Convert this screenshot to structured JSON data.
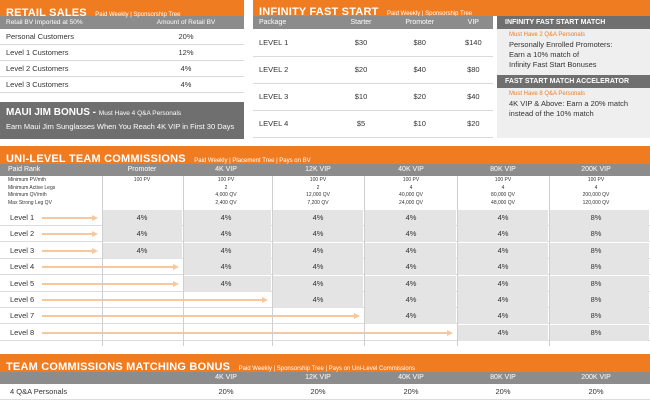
{
  "retail": {
    "title": "RETAIL SALES",
    "subtitle": "Paid Weekly | Sponsorship Tree",
    "col_left": "Retail BV Imported at 50%",
    "col_right": "Amount of Retail BV",
    "rows": [
      {
        "label": "Personal Customers",
        "value": "20%"
      },
      {
        "label": "Level 1 Customers",
        "value": "12%"
      },
      {
        "label": "Level 2 Customers",
        "value": "4%"
      },
      {
        "label": "Level 3 Customers",
        "value": "4%"
      }
    ]
  },
  "maui": {
    "title": "MAUI JIM BONUS -",
    "requirement": "Must Have 4 Q&A Personals",
    "text": "Earn Maui Jim Sunglasses When You Reach 4K VIP in First 30 Days"
  },
  "infinity": {
    "title": "INFINITY FAST START",
    "subtitle": "Paid Weekly | Sponsorship Tree",
    "headers": [
      "Package",
      "Starter",
      "Promoter",
      "VIP"
    ],
    "rows": [
      [
        "LEVEL 1",
        "$30",
        "$80",
        "$140"
      ],
      [
        "LEVEL 2",
        "$20",
        "$40",
        "$80"
      ],
      [
        "LEVEL 3",
        "$10",
        "$20",
        "$40"
      ],
      [
        "LEVEL 4",
        "$5",
        "$10",
        "$20"
      ]
    ],
    "match": {
      "title": "INFINITY FAST START MATCH",
      "requirement": "Must Have 2 Q&A Personals",
      "line1": "Personally Enrolled Promoters:",
      "line2": "Earn a 10% match of",
      "line3": "Infinity Fast Start Bonuses"
    },
    "accel": {
      "title": "FAST START MATCH ACCELERATOR",
      "requirement": "Must Have 8 Q&A Personals",
      "line1": "4K VIP & Above: Earn a 20% match",
      "line2": "instead of the 10% match"
    }
  },
  "unilevel": {
    "title": "UNI-LEVEL TEAM COMMISSIONS",
    "subtitle": "Paid Weekly | Placement Tree | Pays on BV",
    "paid_rank": "Paid Rank",
    "ranks": [
      "Promoter",
      "4K VIP",
      "12K VIP",
      "40K VIP",
      "80K VIP",
      "200K VIP"
    ],
    "req_labels": [
      "Minimum PV/mth",
      "Minimum Active Legs",
      "Minimum QV/mth",
      "Max Strong Leg QV"
    ],
    "requirements": [
      [
        "100 PV",
        "",
        "",
        ""
      ],
      [
        "100 PV",
        "2",
        "4,000 QV",
        "2,400 QV"
      ],
      [
        "100 PV",
        "2",
        "12,000 QV",
        "7,200 QV"
      ],
      [
        "100 PV",
        "4",
        "40,000 QV",
        "24,000 QV"
      ],
      [
        "100 PV",
        "4",
        "80,000 QV",
        "48,000 QV"
      ],
      [
        "100 PV",
        "4",
        "200,000 QV",
        "120,000 QV"
      ]
    ],
    "levels": [
      {
        "label": "Level 1",
        "values": [
          "4%",
          "4%",
          "4%",
          "4%",
          "4%",
          "8%"
        ]
      },
      {
        "label": "Level 2",
        "values": [
          "4%",
          "4%",
          "4%",
          "4%",
          "4%",
          "8%"
        ]
      },
      {
        "label": "Level 3",
        "values": [
          "4%",
          "4%",
          "4%",
          "4%",
          "4%",
          "8%"
        ]
      },
      {
        "label": "Level 4",
        "values": [
          "",
          "4%",
          "4%",
          "4%",
          "4%",
          "8%"
        ]
      },
      {
        "label": "Level 5",
        "values": [
          "",
          "4%",
          "4%",
          "4%",
          "4%",
          "8%"
        ]
      },
      {
        "label": "Level 6",
        "values": [
          "",
          "",
          "4%",
          "4%",
          "4%",
          "8%"
        ]
      },
      {
        "label": "Level 7",
        "values": [
          "",
          "",
          "",
          "4%",
          "4%",
          "8%"
        ]
      },
      {
        "label": "Level 8",
        "values": [
          "",
          "",
          "",
          "",
          "4%",
          "8%"
        ]
      }
    ]
  },
  "matching": {
    "title": "TEAM COMMISSIONS MATCHING BONUS",
    "subtitle": "Paid Weekly | Sponsorship Tree | Pays on Uni-Level Commissions",
    "ranks": [
      "4K VIP",
      "12K VIP",
      "40K VIP",
      "80K VIP",
      "200K VIP"
    ],
    "row_label": "4 Q&A Personals",
    "values": [
      "20%",
      "20%",
      "20%",
      "20%",
      "20%"
    ]
  },
  "colors": {
    "orange": "#f07c22",
    "gray_header": "#8c8c8c",
    "dark_header": "#6f6f6f",
    "arrow": "#f9c79d"
  }
}
